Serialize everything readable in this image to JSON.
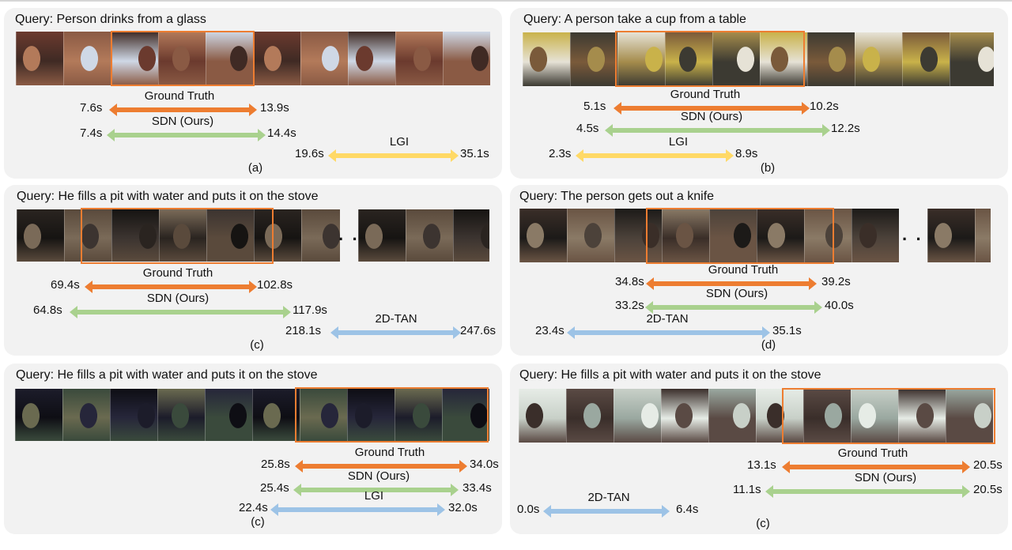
{
  "colors": {
    "ground_truth": "#ed7d31",
    "sdn": "#a9d18e",
    "lgi": "#ffd966",
    "tan": "#9dc3e6",
    "highlight": "#ed7d31",
    "panel_bg": "#f2f2f2"
  },
  "panels": [
    {
      "query": "Query: Person drinks from a glass",
      "caption": "(a)",
      "rows": [
        {
          "method": "Ground Truth",
          "start": "7.6s",
          "end": "13.9s"
        },
        {
          "method": "SDN (Ours)",
          "start": "7.4s",
          "end": "14.4s"
        },
        {
          "method": "LGI",
          "start": "19.6s",
          "end": "35.1s"
        }
      ]
    },
    {
      "query": "Query: A person take a cup from a table",
      "caption": "(b)",
      "rows": [
        {
          "method": "Ground Truth",
          "start": "5.1s",
          "end": "10.2s"
        },
        {
          "method": "SDN (Ours)",
          "start": "4.5s",
          "end": "12.2s"
        },
        {
          "method": "LGI",
          "start": "2.3s",
          "end": "8.9s"
        }
      ]
    },
    {
      "query": "Query: He fills a pit with water and puts it on the stove",
      "caption": "(c)",
      "rows": [
        {
          "method": "Ground Truth",
          "start": "69.4s",
          "end": "102.8s"
        },
        {
          "method": "SDN (Ours)",
          "start": "64.8s",
          "end": "117.9s"
        },
        {
          "method": "2D-TAN",
          "start": "218.1s",
          "end": "247.6s"
        }
      ]
    },
    {
      "query": "Query: The person gets out a knife",
      "caption": "(d)",
      "rows": [
        {
          "method": "Ground Truth",
          "start": "34.8s",
          "end": "39.2s"
        },
        {
          "method": "SDN (Ours)",
          "start": "33.2s",
          "end": "40.0s"
        },
        {
          "method": "2D-TAN",
          "start": "23.4s",
          "end": "35.1s"
        }
      ]
    },
    {
      "query": "Query: He fills a pit with water and puts it on the stove",
      "caption": "(c)",
      "rows": [
        {
          "method": "Ground Truth",
          "start": "25.8s",
          "end": "34.0s"
        },
        {
          "method": "SDN (Ours)",
          "start": "25.4s",
          "end": "33.4s"
        },
        {
          "method": "LGI",
          "start": "22.4s",
          "end": "32.0s"
        }
      ]
    },
    {
      "query": "Query: He fills a pit with water and puts it on the stove",
      "caption": "(c)",
      "rows": [
        {
          "method": "Ground Truth",
          "start": "13.1s",
          "end": "20.5s"
        },
        {
          "method": "SDN (Ours)",
          "start": "11.1s",
          "end": "20.5s"
        },
        {
          "method": "2D-TAN",
          "start": "0.0s",
          "end": "6.4s"
        }
      ]
    }
  ],
  "ellipsis": "· · ·"
}
